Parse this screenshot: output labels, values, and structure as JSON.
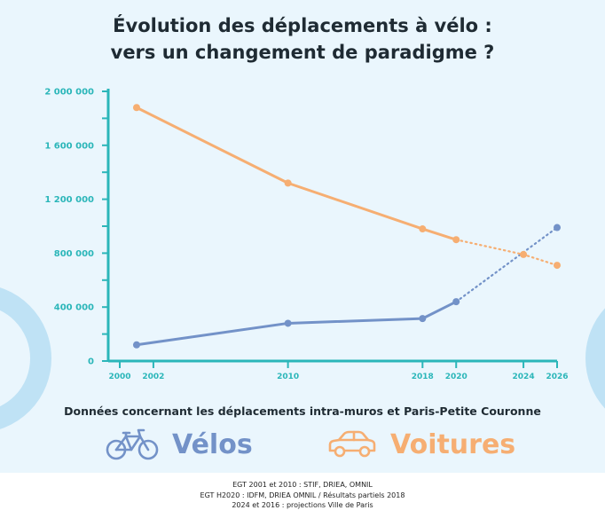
{
  "title_line1": "Évolution des déplacements à vélo :",
  "title_line2": "vers un changement de paradigme ?",
  "subtitle": "Données concernant les déplacements intra-muros et Paris-Petite Couronne",
  "legend": {
    "velos": "Vélos",
    "voitures": "Voitures"
  },
  "footer": [
    "EGT 2001 et 2010 :  STIF, DRIEA, OMNIL",
    "EGT H2020 :  IDFM, DRIEA OMNIL / Résultats partiels 2018",
    "2024 et 2016 : projections Ville de Paris"
  ],
  "colors": {
    "velos": "#7392c8",
    "voitures": "#f6ae72",
    "axis": "#2bb6b9"
  },
  "chart_data": {
    "type": "line",
    "title": "Évolution des déplacements à vélo : vers un changement de paradigme ?",
    "xlabel": "",
    "ylabel": "",
    "xlim": [
      2000,
      2026
    ],
    "ylim": [
      0,
      2000000
    ],
    "x_ticks": [
      2000,
      2002,
      2010,
      2018,
      2020,
      2024,
      2026
    ],
    "x_tick_labels": [
      "2000",
      "2002",
      "2010",
      "2018",
      "2020",
      "2024",
      "2026"
    ],
    "y_ticks": [
      0,
      400000,
      800000,
      1200000,
      1600000,
      2000000
    ],
    "y_tick_labels": [
      "0",
      "400 000",
      "800 000",
      "1 200 000",
      "1 600 000",
      "2 000 000"
    ],
    "series": [
      {
        "name": "Vélos",
        "color": "#7392c8",
        "points": [
          [
            2001,
            120000
          ],
          [
            2010,
            280000
          ],
          [
            2018,
            315000
          ],
          [
            2020,
            440000
          ]
        ],
        "projection": [
          [
            2020,
            440000
          ],
          [
            2026,
            990000
          ]
        ]
      },
      {
        "name": "Voitures",
        "color": "#f6ae72",
        "points": [
          [
            2001,
            1880000
          ],
          [
            2010,
            1320000
          ],
          [
            2018,
            980000
          ],
          [
            2020,
            900000
          ]
        ],
        "projection": [
          [
            2020,
            900000
          ],
          [
            2024,
            790000
          ],
          [
            2026,
            710000
          ]
        ]
      }
    ]
  }
}
